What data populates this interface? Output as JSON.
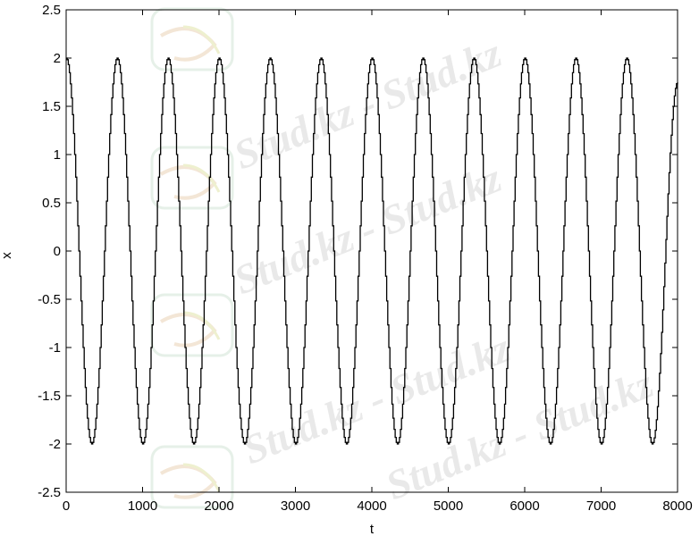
{
  "chart_data": {
    "type": "line",
    "xlabel": "t",
    "ylabel": "x",
    "xlim": [
      0,
      8000
    ],
    "ylim": [
      -2.5,
      2.5
    ],
    "x_ticks": [
      0,
      1000,
      2000,
      3000,
      4000,
      5000,
      6000,
      7000,
      8000
    ],
    "x_tick_labels": [
      "0",
      "1000",
      "2000",
      "3000",
      "4000",
      "5000",
      "6000",
      "7000",
      "8000"
    ],
    "y_ticks": [
      -2.5,
      -2,
      -1.5,
      -1,
      -0.5,
      0,
      0.5,
      1,
      1.5,
      2,
      2.5
    ],
    "y_tick_labels": [
      "-2.5",
      "-2",
      "-1.5",
      "-1",
      "-0.5",
      "0",
      "0.5",
      "1",
      "1.5",
      "2",
      "2.5"
    ],
    "grid": false,
    "line_color": "#000000",
    "series": [
      {
        "x": [
          0,
          333,
          667,
          1000,
          1333,
          1667,
          2000,
          2333,
          2667,
          3000,
          3333,
          3667,
          4000,
          4333,
          4667,
          5000,
          5333,
          5667,
          6000,
          6333,
          6667,
          7000,
          7333,
          7667,
          8000
        ],
        "y": [
          2,
          -2,
          2,
          -2,
          2,
          -2,
          2,
          -2,
          2,
          -2,
          2,
          -2,
          2,
          -2,
          2,
          -2,
          2,
          -2,
          2,
          -2,
          2,
          -2,
          2,
          -2,
          1.75
        ]
      }
    ]
  },
  "watermark": {
    "text": "Stud.kz - Stud.kz",
    "logo_icon": "hummingbird-logo-icon"
  }
}
